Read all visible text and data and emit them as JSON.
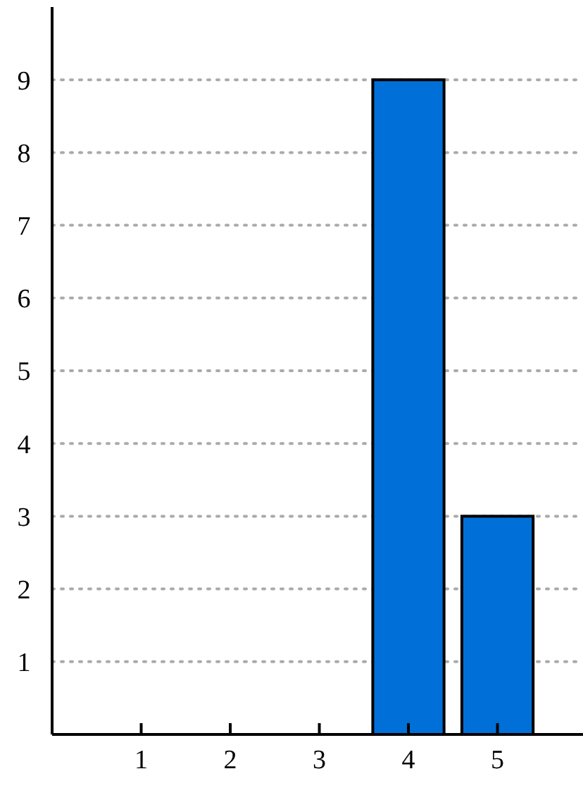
{
  "chart_data": {
    "type": "bar",
    "x": [
      4,
      5
    ],
    "values": [
      9,
      3
    ],
    "color": "#0070d8",
    "xlim": [
      0,
      5.96
    ],
    "xticks": [
      1,
      2,
      3,
      4,
      5
    ],
    "ylim": [
      0,
      10
    ],
    "yticks": [
      1,
      2,
      3,
      4,
      5,
      6,
      7,
      8,
      9
    ],
    "grid": "y"
  }
}
